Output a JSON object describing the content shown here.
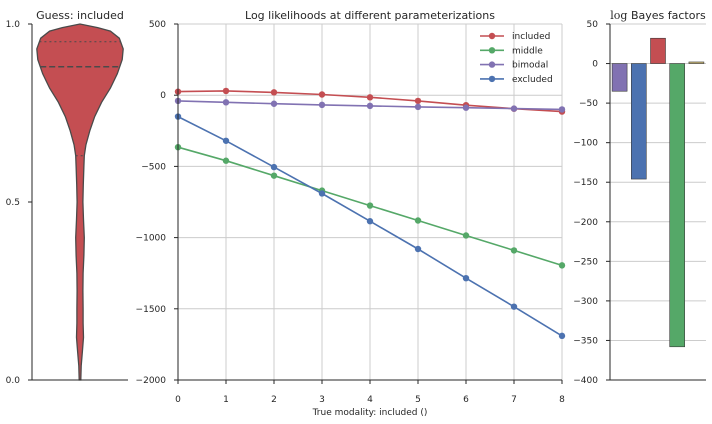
{
  "colors": {
    "included": "#c44e52",
    "middle": "#55a868",
    "bimodal": "#8172b2",
    "excluded": "#4c72b0",
    "fifth": "#ccb974",
    "axis": "#262626",
    "grid": "#cccccc",
    "violin_edge": "#4a4a4a"
  },
  "violin_panel": {
    "title": "Guess: included",
    "y_ticks": [
      "0.0",
      "0.5",
      "1.0"
    ],
    "ylim": [
      0,
      1
    ]
  },
  "main_panel": {
    "title": "Log likelihoods at different parameterizations",
    "xlabel": "True modality: included ()",
    "x_ticks": [
      "0",
      "1",
      "2",
      "3",
      "4",
      "5",
      "6",
      "7",
      "8"
    ],
    "y_ticks": [
      "500",
      "0",
      "−500",
      "−1000",
      "−1500",
      "−2000"
    ]
  },
  "bayes_panel": {
    "title_prefix": "log",
    "title_rest": " Bayes factors",
    "y_ticks": [
      "50",
      "0",
      "−50",
      "−100",
      "−150",
      "−200",
      "−250",
      "−300",
      "−350",
      "−400"
    ]
  },
  "chart_data": [
    {
      "type": "violin",
      "title": "Guess: included",
      "ylim": [
        0,
        1
      ],
      "profile": [
        [
          0.0,
          0.004
        ],
        [
          0.04,
          0.006
        ],
        [
          0.08,
          0.012
        ],
        [
          0.12,
          0.018
        ],
        [
          0.16,
          0.016
        ],
        [
          0.2,
          0.016
        ],
        [
          0.25,
          0.015
        ],
        [
          0.3,
          0.016
        ],
        [
          0.35,
          0.02
        ],
        [
          0.4,
          0.022
        ],
        [
          0.45,
          0.018
        ],
        [
          0.5,
          0.015
        ],
        [
          0.55,
          0.017
        ],
        [
          0.6,
          0.02
        ],
        [
          0.63,
          0.022
        ],
        [
          0.66,
          0.03
        ],
        [
          0.7,
          0.05
        ],
        [
          0.74,
          0.075
        ],
        [
          0.78,
          0.11
        ],
        [
          0.82,
          0.155
        ],
        [
          0.86,
          0.19
        ],
        [
          0.9,
          0.215
        ],
        [
          0.93,
          0.22
        ],
        [
          0.96,
          0.2
        ],
        [
          0.98,
          0.155
        ],
        [
          0.99,
          0.09
        ],
        [
          1.0,
          0.0
        ]
      ],
      "quartiles": {
        "q1": 0.63,
        "median": 0.88,
        "q3": 0.95
      }
    },
    {
      "type": "line",
      "title": "Log likelihoods at different parameterizations",
      "xlabel": "True modality: included ()",
      "ylabel": "",
      "x": [
        0,
        1,
        2,
        3,
        4,
        5,
        6,
        7,
        8
      ],
      "xlim": [
        0,
        8
      ],
      "ylim": [
        -2000,
        500
      ],
      "grid": true,
      "legend_position": "top-right",
      "series": [
        {
          "name": "included",
          "color_key": "included",
          "values": [
            25,
            30,
            20,
            5,
            -15,
            -40,
            -70,
            -95,
            -115
          ]
        },
        {
          "name": "middle",
          "color_key": "middle",
          "values": [
            -365,
            -460,
            -565,
            -670,
            -775,
            -880,
            -985,
            -1090,
            -1195
          ]
        },
        {
          "name": "bimodal",
          "color_key": "bimodal",
          "values": [
            -40,
            -50,
            -60,
            -68,
            -75,
            -82,
            -88,
            -94,
            -100
          ]
        },
        {
          "name": "excluded",
          "color_key": "excluded",
          "values": [
            -150,
            -320,
            -505,
            -690,
            -885,
            -1080,
            -1285,
            -1485,
            -1690
          ]
        }
      ]
    },
    {
      "type": "bar",
      "title": "log Bayes factors",
      "ylim": [
        -400,
        50
      ],
      "grid": true,
      "bars": [
        {
          "color_key": "bimodal",
          "value": -35
        },
        {
          "color_key": "excluded",
          "value": -146
        },
        {
          "color_key": "included",
          "value": 32
        },
        {
          "color_key": "middle",
          "value": -358
        },
        {
          "color_key": "fifth",
          "value": 2
        }
      ]
    }
  ]
}
